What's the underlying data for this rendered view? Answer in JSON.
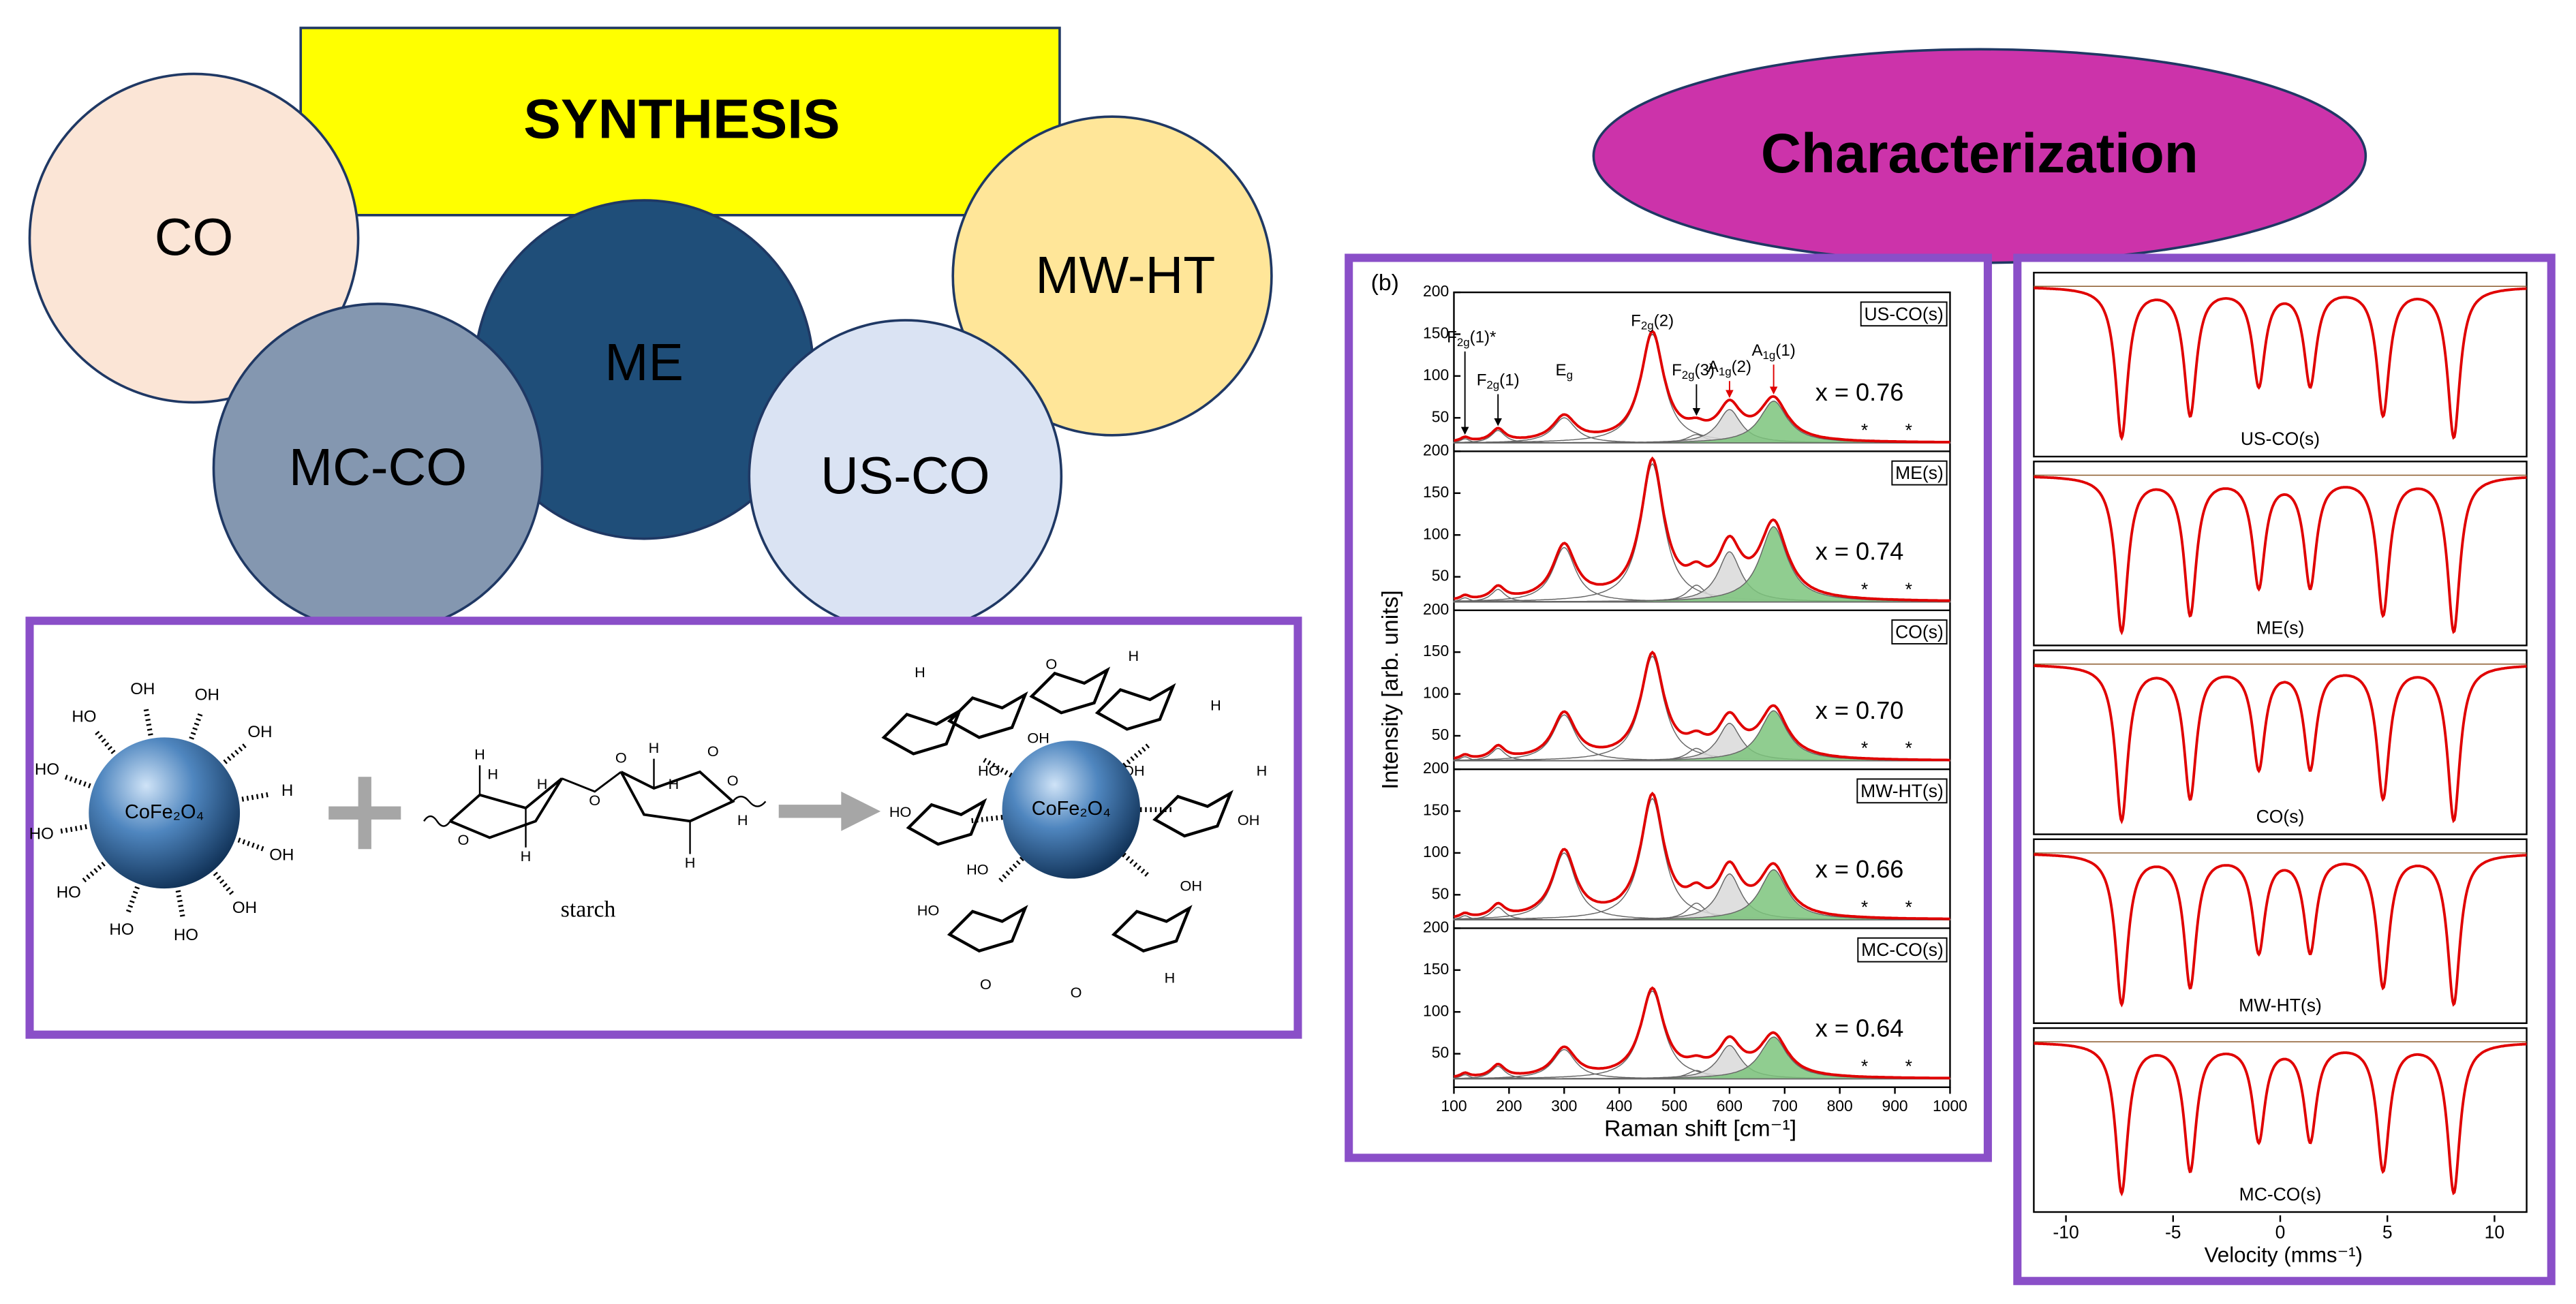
{
  "synthesis": {
    "title": "SYNTHESIS",
    "methods": [
      "CO",
      "MW-HT",
      "ME",
      "MC-CO",
      "US-CO"
    ]
  },
  "reaction": {
    "particle": "CoFe₂O₄",
    "particle_labels": [
      "OH",
      "OH",
      "OH",
      "H",
      "OH",
      "OH",
      "HO",
      "HO",
      "HO",
      "HO",
      "HO",
      "HO"
    ],
    "starch": "starch",
    "starch_labels": [
      "H",
      "O",
      "H",
      "H",
      "O",
      "H",
      "O",
      "H",
      "H",
      "O",
      "H",
      "O",
      "H"
    ],
    "complex_labels": [
      "HO",
      "OH",
      "OH",
      "HO",
      "H",
      "H",
      "O",
      "HO",
      "OH",
      "H",
      "O",
      "H",
      "HO",
      "OH",
      "O",
      "H"
    ]
  },
  "characterization": {
    "title": "Characterization"
  },
  "chart_data": [
    {
      "type": "line",
      "label": "(b)",
      "xlabel": "Raman shift [cm⁻¹]",
      "ylabel": "Intensity [arb. units]",
      "xlim": [
        100,
        1000
      ],
      "xticks": [
        100,
        200,
        300,
        400,
        500,
        600,
        700,
        800,
        900,
        1000
      ],
      "ylim": [
        10,
        200
      ],
      "yticks": [
        50,
        100,
        150,
        200
      ],
      "background": 20,
      "peak_centers": [
        120,
        180,
        300,
        460,
        540,
        600,
        680
      ],
      "peak_widths": [
        10,
        15,
        25,
        25,
        20,
        25,
        30
      ],
      "peak_labels": [
        {
          "main": "F",
          "sub": "2g",
          "suffix": "(1)*"
        },
        {
          "main": "F",
          "sub": "2g",
          "suffix": "(1)"
        },
        {
          "main": "E",
          "sub": "g",
          "suffix": ""
        },
        {
          "main": "F",
          "sub": "2g",
          "suffix": "(2)"
        },
        {
          "main": "F",
          "sub": "2g",
          "suffix": "(3)"
        },
        {
          "main": "A",
          "sub": "1g",
          "suffix": "(2)"
        },
        {
          "main": "A",
          "sub": "1g",
          "suffix": "(1)"
        }
      ],
      "asterisk": "*",
      "asterisk_x": [
        845,
        925
      ],
      "series": [
        {
          "name": "US-CO(s)",
          "annotation": "x = 0.76",
          "values": [
            5,
            15,
            30,
            130,
            10,
            40,
            50
          ]
        },
        {
          "name": "ME(s)",
          "annotation": "x = 0.74",
          "values": [
            5,
            15,
            65,
            165,
            20,
            60,
            90
          ]
        },
        {
          "name": "CO(s)",
          "annotation": "x = 0.70",
          "values": [
            5,
            15,
            55,
            125,
            15,
            45,
            60
          ]
        },
        {
          "name": "MW-HT(s)",
          "annotation": "x = 0.66",
          "values": [
            5,
            15,
            80,
            145,
            20,
            55,
            60
          ]
        },
        {
          "name": "MC-CO(s)",
          "annotation": "x = 0.64",
          "values": [
            5,
            15,
            35,
            105,
            10,
            40,
            50
          ]
        }
      ]
    },
    {
      "type": "line",
      "xlabel": "Velocity (mms⁻¹)",
      "xlim": [
        -11.5,
        11.5
      ],
      "xticks": [
        -10,
        -5,
        0,
        5,
        10
      ],
      "ylim": [
        0,
        100
      ],
      "background": 95,
      "line_positions": [
        -7.4,
        -4.2,
        -1.0,
        1.4,
        4.8,
        8.1
      ],
      "line_widths": [
        0.35,
        0.35,
        0.35,
        0.35,
        0.35,
        0.35
      ],
      "series": [
        {
          "name": "US-CO(s)",
          "values": [
            85,
            72,
            55,
            55,
            72,
            85
          ]
        },
        {
          "name": "ME(s)",
          "values": [
            88,
            78,
            62,
            62,
            78,
            88
          ]
        },
        {
          "name": "CO(s)",
          "values": [
            88,
            75,
            58,
            58,
            75,
            88
          ]
        },
        {
          "name": "MW-HT(s)",
          "values": [
            85,
            75,
            55,
            55,
            75,
            85
          ]
        },
        {
          "name": "MC-CO(s)",
          "values": [
            85,
            72,
            55,
            55,
            72,
            85
          ]
        }
      ]
    }
  ]
}
